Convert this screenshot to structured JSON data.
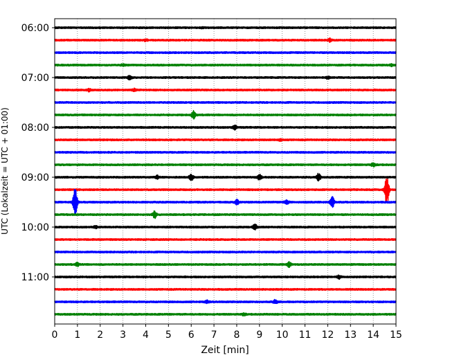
{
  "chart_data": {
    "type": "line",
    "title": "",
    "xlabel": "Zeit  [min]",
    "ylabel": "UTC (Lokalzeit = UTC + 01:00)",
    "xlim": [
      0,
      15
    ],
    "x_ticks": [
      "0",
      "1",
      "2",
      "3",
      "4",
      "5",
      "6",
      "7",
      "8",
      "9",
      "10",
      "11",
      "12",
      "13",
      "14",
      "15"
    ],
    "y_ticks": [
      "06:00",
      "07:00",
      "08:00",
      "09:00",
      "10:00",
      "11:00"
    ],
    "grid": "vertical dotted",
    "trace_colors": [
      "#000000",
      "#ff0000",
      "#0000ff",
      "#008000"
    ],
    "traces": [
      {
        "start": "06:00",
        "color": "#000000",
        "events": [
          {
            "t": 6.5,
            "amp": 0.08
          }
        ]
      },
      {
        "start": "06:15",
        "color": "#ff0000",
        "events": [
          {
            "t": 12.1,
            "amp": 0.2
          },
          {
            "t": 4.0,
            "amp": 0.1
          }
        ]
      },
      {
        "start": "06:30",
        "color": "#0000ff",
        "events": []
      },
      {
        "start": "06:45",
        "color": "#008000",
        "events": [
          {
            "t": 3.0,
            "amp": 0.1
          },
          {
            "t": 14.8,
            "amp": 0.1
          }
        ]
      },
      {
        "start": "07:00",
        "color": "#000000",
        "events": [
          {
            "t": 3.3,
            "amp": 0.3
          },
          {
            "t": 12.0,
            "amp": 0.15
          }
        ]
      },
      {
        "start": "07:15",
        "color": "#ff0000",
        "events": [
          {
            "t": 1.5,
            "amp": 0.15
          },
          {
            "t": 3.5,
            "amp": 0.15
          }
        ]
      },
      {
        "start": "07:30",
        "color": "#0000ff",
        "events": []
      },
      {
        "start": "07:45",
        "color": "#008000",
        "events": [
          {
            "t": 6.1,
            "amp": 0.5
          }
        ]
      },
      {
        "start": "08:00",
        "color": "#000000",
        "events": [
          {
            "t": 7.9,
            "amp": 0.3
          }
        ]
      },
      {
        "start": "08:15",
        "color": "#ff0000",
        "events": [
          {
            "t": 9.9,
            "amp": 0.12
          }
        ]
      },
      {
        "start": "08:30",
        "color": "#0000ff",
        "events": []
      },
      {
        "start": "08:45",
        "color": "#008000",
        "events": [
          {
            "t": 14.0,
            "amp": 0.25
          }
        ]
      },
      {
        "start": "09:00",
        "color": "#000000",
        "events": [
          {
            "t": 6.0,
            "amp": 0.45
          },
          {
            "t": 9.0,
            "amp": 0.4
          },
          {
            "t": 11.6,
            "amp": 0.5
          },
          {
            "t": 4.5,
            "amp": 0.2
          }
        ]
      },
      {
        "start": "09:15",
        "color": "#ff0000",
        "events": [
          {
            "t": 14.6,
            "amp": 2.0
          }
        ]
      },
      {
        "start": "09:30",
        "color": "#0000ff",
        "events": [
          {
            "t": 0.9,
            "amp": 2.0
          },
          {
            "t": 12.2,
            "amp": 0.7
          },
          {
            "t": 8.0,
            "amp": 0.3
          },
          {
            "t": 10.2,
            "amp": 0.3
          }
        ]
      },
      {
        "start": "09:45",
        "color": "#008000",
        "events": [
          {
            "t": 4.4,
            "amp": 0.45
          }
        ]
      },
      {
        "start": "10:00",
        "color": "#000000",
        "events": [
          {
            "t": 8.8,
            "amp": 0.35
          },
          {
            "t": 1.8,
            "amp": 0.15
          }
        ]
      },
      {
        "start": "10:15",
        "color": "#ff0000",
        "events": []
      },
      {
        "start": "10:30",
        "color": "#0000ff",
        "events": []
      },
      {
        "start": "10:45",
        "color": "#008000",
        "events": [
          {
            "t": 1.0,
            "amp": 0.2
          },
          {
            "t": 10.3,
            "amp": 0.3
          }
        ]
      },
      {
        "start": "11:00",
        "color": "#000000",
        "events": [
          {
            "t": 12.5,
            "amp": 0.2
          }
        ]
      },
      {
        "start": "11:15",
        "color": "#ff0000",
        "events": []
      },
      {
        "start": "11:30",
        "color": "#0000ff",
        "events": [
          {
            "t": 9.7,
            "amp": 0.25
          },
          {
            "t": 6.7,
            "amp": 0.15
          }
        ]
      },
      {
        "start": "11:45",
        "color": "#008000",
        "events": [
          {
            "t": 8.3,
            "amp": 0.15
          }
        ]
      }
    ]
  }
}
